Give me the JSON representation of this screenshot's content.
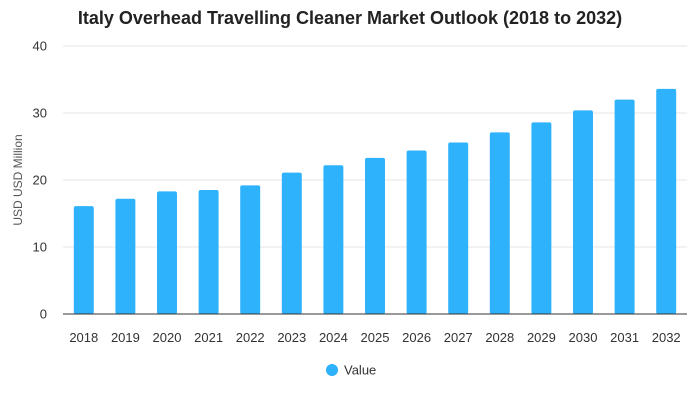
{
  "chart_data": {
    "type": "bar",
    "title": "Italy Overhead Travelling Cleaner Market Outlook (2018 to 2032)",
    "xlabel": "",
    "ylabel": "USD USD Million",
    "categories": [
      "2018",
      "2019",
      "2020",
      "2021",
      "2022",
      "2023",
      "2024",
      "2025",
      "2026",
      "2027",
      "2028",
      "2029",
      "2030",
      "2031",
      "2032"
    ],
    "series": [
      {
        "name": "Value",
        "values": [
          16.1,
          17.2,
          18.3,
          18.5,
          19.2,
          21.1,
          22.2,
          23.3,
          24.4,
          25.6,
          27.1,
          28.6,
          30.4,
          32.0,
          33.6
        ]
      }
    ],
    "ylim": [
      0,
      40
    ],
    "yticks": [
      0,
      10,
      20,
      30,
      40
    ],
    "grid": true,
    "legend_position": "bottom-center",
    "colors": {
      "bar": "#2db2fb",
      "grid": "#e6e6e6",
      "axis": "#333333"
    }
  }
}
